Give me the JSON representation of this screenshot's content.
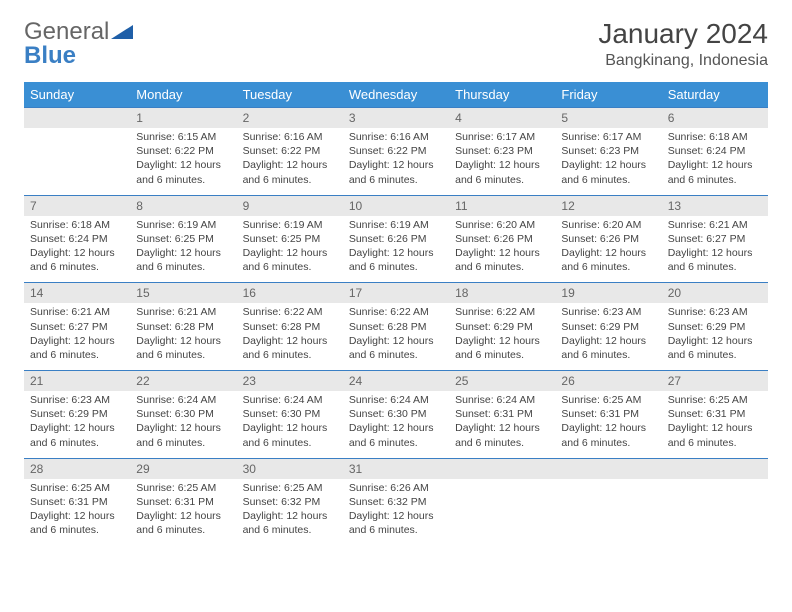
{
  "logo": {
    "part1": "General",
    "part2": "Blue"
  },
  "title": "January 2024",
  "location": "Bangkinang, Indonesia",
  "colors": {
    "header_bg": "#3a8fd4",
    "header_text": "#ffffff",
    "numrow_bg": "#e8e8e8",
    "numrow_text": "#666666",
    "border": "#3a7fc4",
    "body_text": "#444444",
    "logo_gray": "#666666",
    "logo_blue": "#3a7fc4"
  },
  "typography": {
    "title_fontsize": 28,
    "location_fontsize": 16,
    "dayheader_fontsize": 13,
    "daynum_fontsize": 12,
    "cell_fontsize": 10.5
  },
  "day_names": [
    "Sunday",
    "Monday",
    "Tuesday",
    "Wednesday",
    "Thursday",
    "Friday",
    "Saturday"
  ],
  "weeks": [
    {
      "nums": [
        "",
        "1",
        "2",
        "3",
        "4",
        "5",
        "6"
      ],
      "cells": [
        null,
        {
          "sunrise": "6:15 AM",
          "sunset": "6:22 PM",
          "daylight": "12 hours and 6 minutes."
        },
        {
          "sunrise": "6:16 AM",
          "sunset": "6:22 PM",
          "daylight": "12 hours and 6 minutes."
        },
        {
          "sunrise": "6:16 AM",
          "sunset": "6:22 PM",
          "daylight": "12 hours and 6 minutes."
        },
        {
          "sunrise": "6:17 AM",
          "sunset": "6:23 PM",
          "daylight": "12 hours and 6 minutes."
        },
        {
          "sunrise": "6:17 AM",
          "sunset": "6:23 PM",
          "daylight": "12 hours and 6 minutes."
        },
        {
          "sunrise": "6:18 AM",
          "sunset": "6:24 PM",
          "daylight": "12 hours and 6 minutes."
        }
      ]
    },
    {
      "nums": [
        "7",
        "8",
        "9",
        "10",
        "11",
        "12",
        "13"
      ],
      "cells": [
        {
          "sunrise": "6:18 AM",
          "sunset": "6:24 PM",
          "daylight": "12 hours and 6 minutes."
        },
        {
          "sunrise": "6:19 AM",
          "sunset": "6:25 PM",
          "daylight": "12 hours and 6 minutes."
        },
        {
          "sunrise": "6:19 AM",
          "sunset": "6:25 PM",
          "daylight": "12 hours and 6 minutes."
        },
        {
          "sunrise": "6:19 AM",
          "sunset": "6:26 PM",
          "daylight": "12 hours and 6 minutes."
        },
        {
          "sunrise": "6:20 AM",
          "sunset": "6:26 PM",
          "daylight": "12 hours and 6 minutes."
        },
        {
          "sunrise": "6:20 AM",
          "sunset": "6:26 PM",
          "daylight": "12 hours and 6 minutes."
        },
        {
          "sunrise": "6:21 AM",
          "sunset": "6:27 PM",
          "daylight": "12 hours and 6 minutes."
        }
      ]
    },
    {
      "nums": [
        "14",
        "15",
        "16",
        "17",
        "18",
        "19",
        "20"
      ],
      "cells": [
        {
          "sunrise": "6:21 AM",
          "sunset": "6:27 PM",
          "daylight": "12 hours and 6 minutes."
        },
        {
          "sunrise": "6:21 AM",
          "sunset": "6:28 PM",
          "daylight": "12 hours and 6 minutes."
        },
        {
          "sunrise": "6:22 AM",
          "sunset": "6:28 PM",
          "daylight": "12 hours and 6 minutes."
        },
        {
          "sunrise": "6:22 AM",
          "sunset": "6:28 PM",
          "daylight": "12 hours and 6 minutes."
        },
        {
          "sunrise": "6:22 AM",
          "sunset": "6:29 PM",
          "daylight": "12 hours and 6 minutes."
        },
        {
          "sunrise": "6:23 AM",
          "sunset": "6:29 PM",
          "daylight": "12 hours and 6 minutes."
        },
        {
          "sunrise": "6:23 AM",
          "sunset": "6:29 PM",
          "daylight": "12 hours and 6 minutes."
        }
      ]
    },
    {
      "nums": [
        "21",
        "22",
        "23",
        "24",
        "25",
        "26",
        "27"
      ],
      "cells": [
        {
          "sunrise": "6:23 AM",
          "sunset": "6:29 PM",
          "daylight": "12 hours and 6 minutes."
        },
        {
          "sunrise": "6:24 AM",
          "sunset": "6:30 PM",
          "daylight": "12 hours and 6 minutes."
        },
        {
          "sunrise": "6:24 AM",
          "sunset": "6:30 PM",
          "daylight": "12 hours and 6 minutes."
        },
        {
          "sunrise": "6:24 AM",
          "sunset": "6:30 PM",
          "daylight": "12 hours and 6 minutes."
        },
        {
          "sunrise": "6:24 AM",
          "sunset": "6:31 PM",
          "daylight": "12 hours and 6 minutes."
        },
        {
          "sunrise": "6:25 AM",
          "sunset": "6:31 PM",
          "daylight": "12 hours and 6 minutes."
        },
        {
          "sunrise": "6:25 AM",
          "sunset": "6:31 PM",
          "daylight": "12 hours and 6 minutes."
        }
      ]
    },
    {
      "nums": [
        "28",
        "29",
        "30",
        "31",
        "",
        "",
        ""
      ],
      "cells": [
        {
          "sunrise": "6:25 AM",
          "sunset": "6:31 PM",
          "daylight": "12 hours and 6 minutes."
        },
        {
          "sunrise": "6:25 AM",
          "sunset": "6:31 PM",
          "daylight": "12 hours and 6 minutes."
        },
        {
          "sunrise": "6:25 AM",
          "sunset": "6:32 PM",
          "daylight": "12 hours and 6 minutes."
        },
        {
          "sunrise": "6:26 AM",
          "sunset": "6:32 PM",
          "daylight": "12 hours and 6 minutes."
        },
        null,
        null,
        null
      ]
    }
  ],
  "labels": {
    "sunrise_prefix": "Sunrise: ",
    "sunset_prefix": "Sunset: ",
    "daylight_prefix": "Daylight: "
  }
}
